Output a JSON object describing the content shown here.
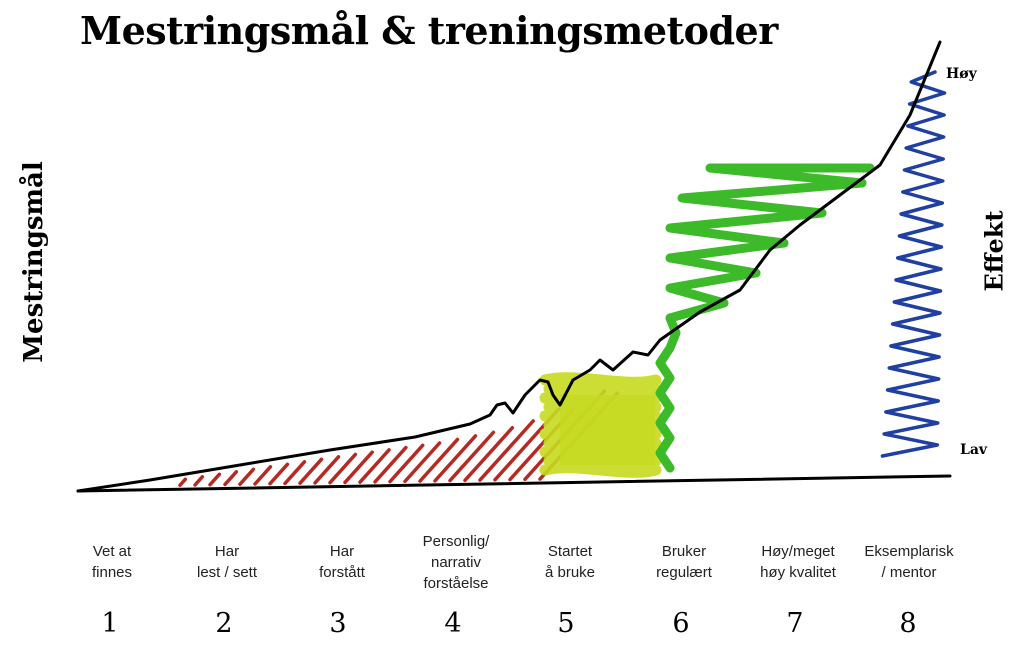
{
  "title": "Mestringsmål & treningsmetoder",
  "y_axis_label": "Mestringsmål",
  "effect_label": "Effekt",
  "effect_high": "Høy",
  "effect_low": "Lav",
  "colors": {
    "red": "#b52a22",
    "yellow": "#c6da1f",
    "green": "#3dba2a",
    "blue": "#1f3fa3",
    "line": "#000000"
  },
  "stages": [
    {
      "number": "1",
      "label": "Vet at\nfinnes"
    },
    {
      "number": "2",
      "label": "Har\nlest / sett"
    },
    {
      "number": "3",
      "label": "Har\nforstått"
    },
    {
      "number": "4",
      "label": "Personlig/\nnarrativ\nforståelse"
    },
    {
      "number": "5",
      "label": "Startet\nå bruke"
    },
    {
      "number": "6",
      "label": "Bruker\nregulært"
    },
    {
      "number": "7",
      "label": "Høy/meget\nhøy kvalitet"
    },
    {
      "number": "8",
      "label": "Eksemplarisk\n/ mentor"
    }
  ]
}
